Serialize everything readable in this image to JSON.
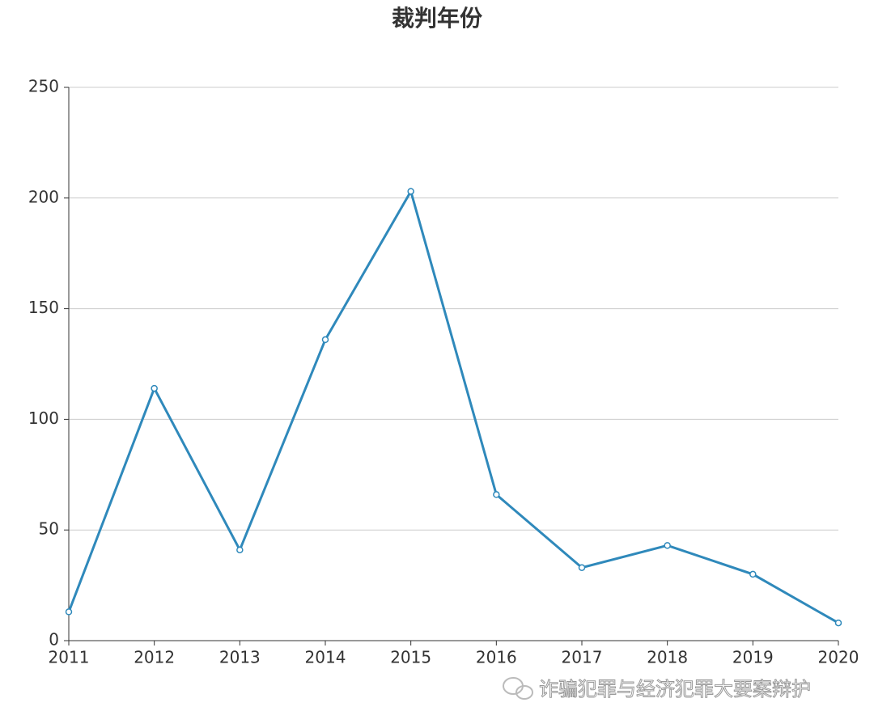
{
  "chart_data": {
    "type": "line",
    "title": "裁判年份",
    "categories": [
      "2011",
      "2012",
      "2013",
      "2014",
      "2015",
      "2016",
      "2017",
      "2018",
      "2019",
      "2020"
    ],
    "series": [
      {
        "color": "#2f89bb",
        "values": [
          13,
          114,
          41,
          136,
          203,
          66,
          33,
          43,
          30,
          8
        ]
      }
    ],
    "ylim": [
      0,
      250
    ],
    "yticks": [
      0,
      50,
      100,
      150,
      200,
      250
    ],
    "grid": true
  },
  "watermark": "诈骗犯罪与经济犯罪大要案辩护"
}
